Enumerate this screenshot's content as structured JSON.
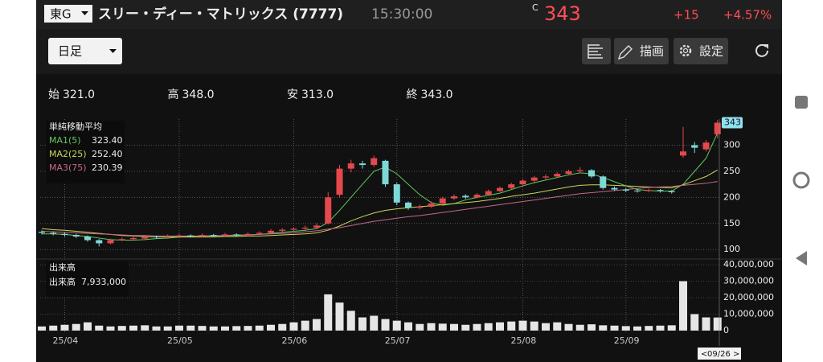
{
  "header": {
    "exchange": "東G",
    "name": "スリー・ディー・マトリックス (7777)",
    "time": "15:30:00",
    "price_flag": "C",
    "price": "343",
    "change": "+15",
    "change_pct": "+4.57%"
  },
  "toolbar": {
    "period": "日足",
    "draw": "描画",
    "settings": "設定"
  },
  "ohlc": [
    {
      "label": "始",
      "value": "321.0"
    },
    {
      "label": "高",
      "value": "348.0"
    },
    {
      "label": "安",
      "value": "313.0"
    },
    {
      "label": "終",
      "value": "343.0"
    }
  ],
  "chart_data": [
    {
      "type": "candlestick",
      "legend_title": "単純移動平均",
      "up_color": "#e5484d",
      "down_color": "#7fd8d8",
      "ohlc": [
        [
          134,
          137,
          129,
          132
        ],
        [
          132,
          135,
          127,
          130
        ],
        [
          130,
          133,
          125,
          128
        ],
        [
          128,
          130,
          122,
          125
        ],
        [
          125,
          127,
          115,
          118
        ],
        [
          118,
          120,
          106,
          112
        ],
        [
          112,
          121,
          110,
          118
        ],
        [
          118,
          123,
          116,
          120
        ],
        [
          120,
          125,
          118,
          122
        ],
        [
          121,
          128,
          119,
          125
        ],
        [
          125,
          127,
          121,
          124
        ],
        [
          124,
          129,
          122,
          126
        ],
        [
          126,
          130,
          124,
          127
        ],
        [
          127,
          129,
          123,
          126
        ],
        [
          126,
          131,
          124,
          128
        ],
        [
          128,
          130,
          125,
          127
        ],
        [
          127,
          132,
          125,
          129
        ],
        [
          129,
          131,
          126,
          128
        ],
        [
          128,
          133,
          126,
          130
        ],
        [
          130,
          135,
          128,
          132
        ],
        [
          132,
          139,
          130,
          136
        ],
        [
          136,
          141,
          134,
          138
        ],
        [
          138,
          143,
          136,
          140
        ],
        [
          140,
          146,
          138,
          142
        ],
        [
          142,
          150,
          140,
          146
        ],
        [
          150,
          210,
          148,
          200
        ],
        [
          205,
          262,
          200,
          255
        ],
        [
          255,
          272,
          248,
          265
        ],
        [
          265,
          270,
          255,
          262
        ],
        [
          262,
          280,
          258,
          275
        ],
        [
          270,
          272,
          220,
          225
        ],
        [
          225,
          228,
          185,
          190
        ],
        [
          190,
          192,
          176,
          180
        ],
        [
          180,
          186,
          177,
          182
        ],
        [
          182,
          192,
          180,
          188
        ],
        [
          188,
          201,
          185,
          198
        ],
        [
          198,
          206,
          195,
          202
        ],
        [
          203,
          206,
          197,
          200
        ],
        [
          200,
          208,
          198,
          205
        ],
        [
          205,
          215,
          203,
          212
        ],
        [
          212,
          221,
          210,
          218
        ],
        [
          218,
          228,
          215,
          225
        ],
        [
          225,
          235,
          222,
          232
        ],
        [
          232,
          241,
          229,
          238
        ],
        [
          238,
          244,
          234,
          240
        ],
        [
          240,
          248,
          237,
          245
        ],
        [
          245,
          253,
          242,
          250
        ],
        [
          250,
          258,
          246,
          252
        ],
        [
          252,
          254,
          237,
          240
        ],
        [
          240,
          242,
          215,
          218
        ],
        [
          218,
          221,
          212,
          215
        ],
        [
          215,
          218,
          210,
          213
        ],
        [
          213,
          216,
          209,
          212
        ],
        [
          212,
          217,
          210,
          214
        ],
        [
          214,
          216,
          209,
          212
        ],
        [
          212,
          214,
          207,
          210
        ],
        [
          280,
          335,
          276,
          288
        ],
        [
          300,
          306,
          285,
          295
        ],
        [
          292,
          310,
          288,
          305
        ],
        [
          321,
          348,
          313,
          343
        ]
      ],
      "series": [
        {
          "name": "MA1(5)",
          "value_label": "323.40",
          "color": "#5fc85f",
          "values": [
            130,
            130,
            129,
            127,
            125,
            122,
            119,
            118,
            118,
            119,
            121,
            122,
            124,
            125,
            126,
            126,
            127,
            127,
            128,
            129,
            131,
            133,
            135,
            137,
            140,
            152,
            175,
            200,
            225,
            250,
            258,
            245,
            225,
            205,
            190,
            185,
            188,
            195,
            200,
            204,
            208,
            215,
            222,
            228,
            233,
            238,
            243,
            247,
            245,
            238,
            230,
            222,
            215,
            213,
            212,
            212,
            225,
            250,
            275,
            323.4
          ]
        },
        {
          "name": "MA2(25)",
          "value_label": "252.40",
          "color": "#c9d65a",
          "values": [
            140,
            138,
            137,
            135,
            133,
            131,
            129,
            127,
            126,
            125,
            124,
            124,
            124,
            124,
            124,
            124,
            125,
            125,
            126,
            126,
            127,
            128,
            129,
            130,
            132,
            137,
            145,
            155,
            163,
            170,
            175,
            178,
            180,
            182,
            184,
            186,
            188,
            190,
            192,
            195,
            198,
            202,
            205,
            208,
            212,
            216,
            220,
            223,
            224,
            224,
            223,
            222,
            221,
            220,
            219,
            218,
            224,
            232,
            240,
            252.4
          ]
        },
        {
          "name": "MA3(75)",
          "value_label": "230.39",
          "color": "#c8678a",
          "values": [
            135,
            134,
            133,
            132,
            131,
            130,
            129,
            128,
            127,
            127,
            126,
            126,
            126,
            126,
            126,
            127,
            127,
            128,
            128,
            129,
            130,
            131,
            132,
            134,
            136,
            139,
            142,
            146,
            150,
            154,
            157,
            160,
            163,
            165,
            168,
            171,
            174,
            177,
            180,
            183,
            186,
            189,
            192,
            195,
            198,
            201,
            204,
            207,
            209,
            211,
            213,
            215,
            217,
            219,
            220,
            221,
            223,
            225,
            227,
            230.39
          ]
        }
      ],
      "last_price": 343,
      "ylim": [
        88,
        350
      ],
      "yticks": [
        100,
        150,
        200,
        250,
        300
      ],
      "xticks": [
        {
          "value": 2,
          "label": "25/04"
        },
        {
          "value": 12,
          "label": "25/05"
        },
        {
          "value": 22,
          "label": "25/06"
        },
        {
          "value": 31,
          "label": "25/07"
        },
        {
          "value": 42,
          "label": "25/08"
        },
        {
          "value": 51,
          "label": "25/09"
        }
      ],
      "grid": true
    },
    {
      "type": "bar",
      "title": "出来高",
      "legend_label": "出来高",
      "legend_value": "7,933,000",
      "cursor_date": "09/26",
      "color": "#e6e6e6",
      "values": [
        2500000,
        3000000,
        3500000,
        4000000,
        5000000,
        3000000,
        2500000,
        2800000,
        3000000,
        3200000,
        2500000,
        2500000,
        3000000,
        3000000,
        2800000,
        2500000,
        2500000,
        2700000,
        2800000,
        3000000,
        3500000,
        4000000,
        5000000,
        6000000,
        7000000,
        22000000,
        17000000,
        12000000,
        8000000,
        9000000,
        7000000,
        6000000,
        5000000,
        4000000,
        4500000,
        4200000,
        4000000,
        3500000,
        4000000,
        4500000,
        5000000,
        5500000,
        6000000,
        5500000,
        4500000,
        5000000,
        4000000,
        3500000,
        3800000,
        3200000,
        3000000,
        2700000,
        2500000,
        2800000,
        3000000,
        3200000,
        30000000,
        10000000,
        8000000,
        7933000
      ],
      "ylim": [
        -2000000,
        42000000
      ],
      "yticks": [
        0,
        {
          "value": 10000000,
          "label": "10,000,000"
        },
        {
          "value": 20000000,
          "label": "20,000,000"
        },
        {
          "value": 30000000,
          "label": "30,000,000"
        },
        {
          "value": 40000000,
          "label": "40,000,000"
        }
      ],
      "grid": true
    }
  ]
}
